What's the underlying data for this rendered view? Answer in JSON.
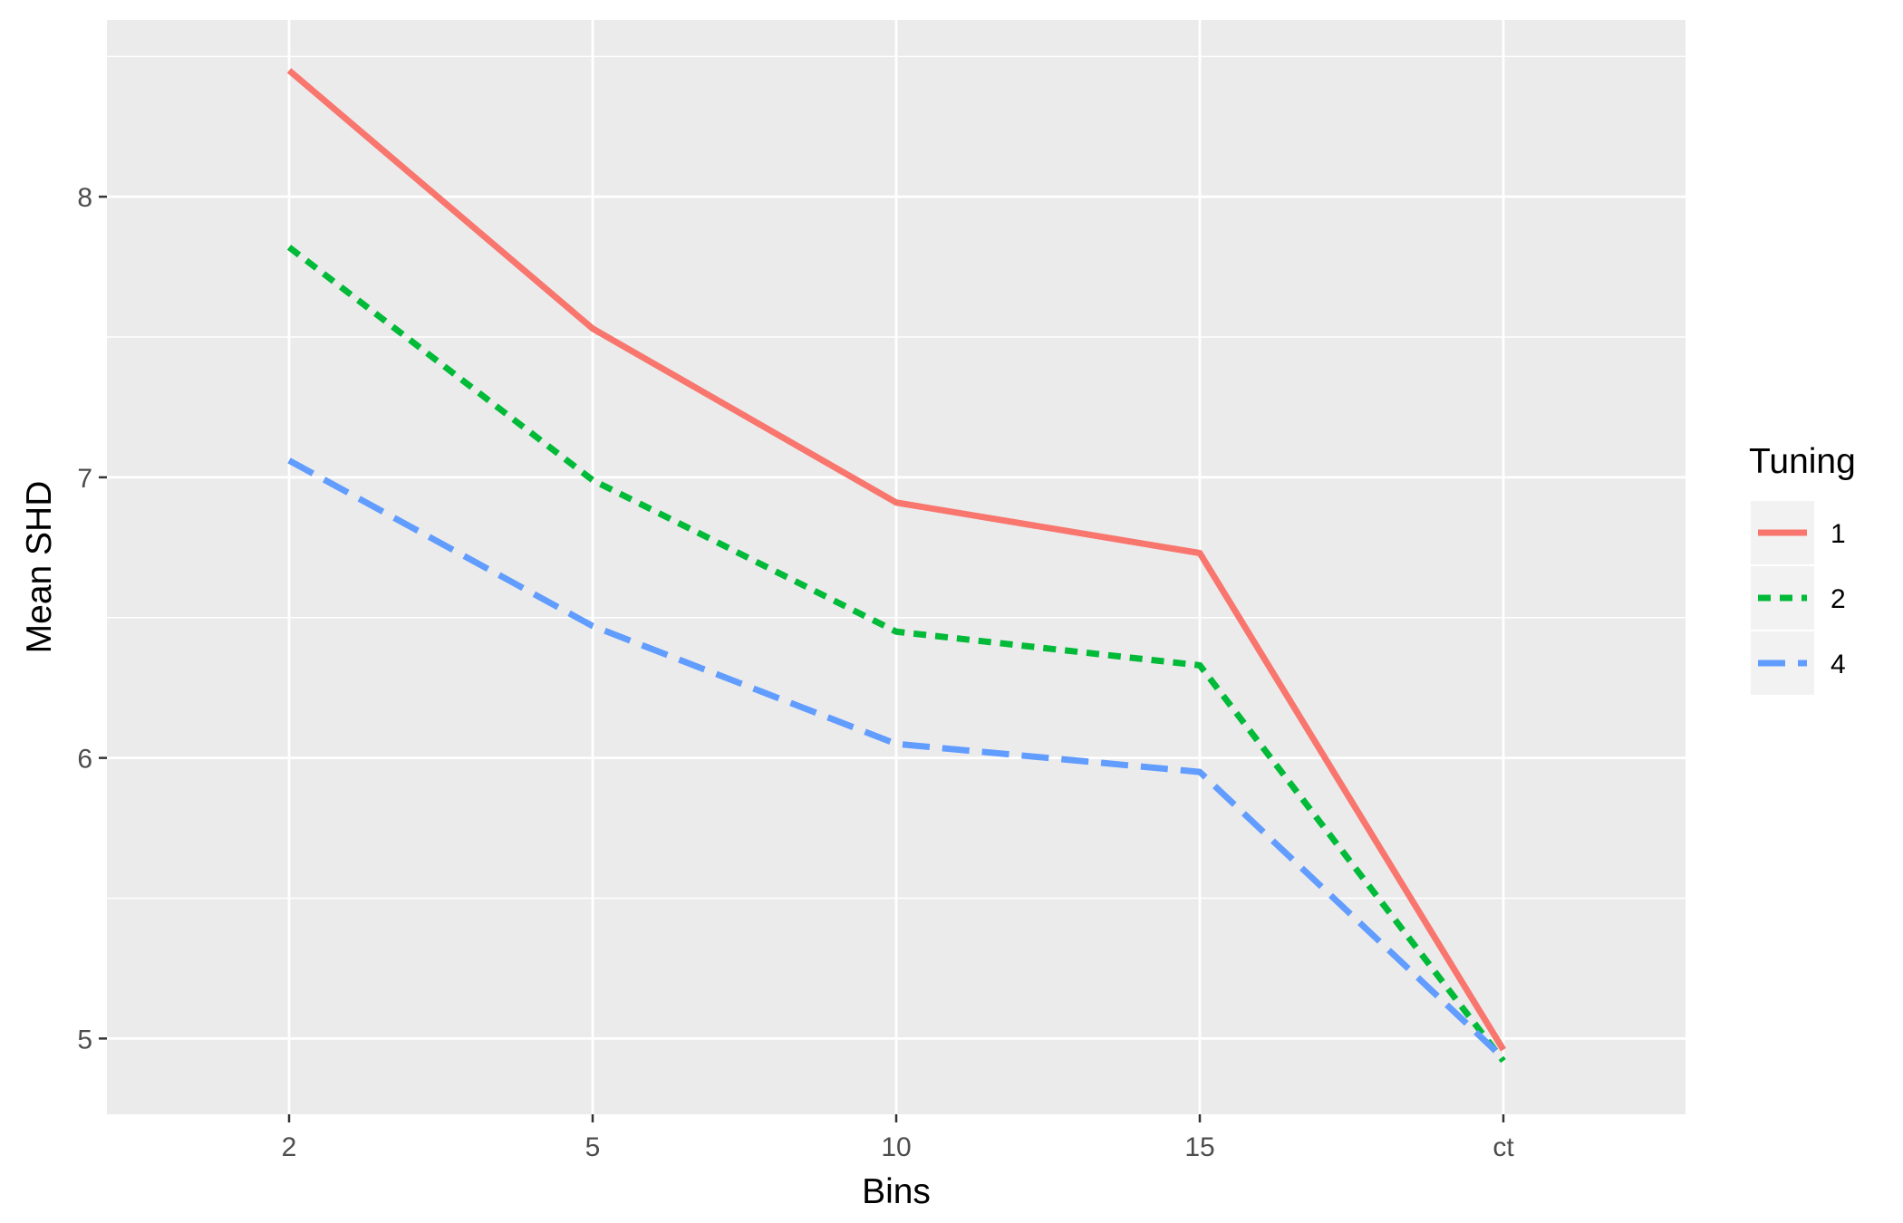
{
  "chart_data": {
    "type": "line",
    "categories": [
      "2",
      "5",
      "10",
      "15",
      "ct"
    ],
    "xlabel": "Bins",
    "ylabel": "Mean SHD",
    "ylim": [
      4.73,
      8.63
    ],
    "yticks": [
      5,
      6,
      7,
      8
    ],
    "grid": true,
    "legend": {
      "title": "Tuning",
      "position": "right"
    },
    "series": [
      {
        "name": "1",
        "color": "#f8766d",
        "dash": "solid",
        "values": [
          8.45,
          7.53,
          6.91,
          6.73,
          4.96
        ]
      },
      {
        "name": "2",
        "color": "#00ba38",
        "dash": "dotted",
        "values": [
          7.82,
          6.99,
          6.45,
          6.33,
          4.92
        ]
      },
      {
        "name": "4",
        "color": "#619cff",
        "dash": "dashed",
        "values": [
          7.06,
          6.47,
          6.05,
          5.95,
          4.93
        ]
      }
    ],
    "panel_background": "#ebebeb",
    "grid_color": "#ffffff"
  }
}
